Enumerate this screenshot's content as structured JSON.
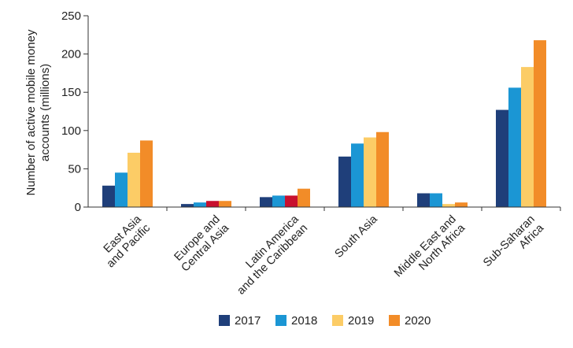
{
  "chart_data": {
    "type": "bar",
    "title": "",
    "xlabel": "",
    "ylabel_lines": [
      "Number of active mobile money",
      "accounts (millions)"
    ],
    "ylim": [
      0,
      250
    ],
    "yticks": [
      "0",
      "50",
      "100",
      "150",
      "200",
      "250"
    ],
    "grid": false,
    "legend_position": "bottom",
    "categories": [
      [
        "East Asia",
        "and Pacific"
      ],
      [
        "Europe and",
        "Central Asia"
      ],
      [
        "Latin America",
        "and the Caribbean"
      ],
      [
        "South Asia"
      ],
      [
        "Middle East and",
        "North Africa"
      ],
      [
        "Sub-Saharan",
        "Africa"
      ]
    ],
    "series": [
      {
        "name": "2017",
        "color": "#1f3f7a",
        "values": [
          28,
          4,
          13,
          66,
          18,
          127
        ]
      },
      {
        "name": "2018",
        "color": "#1b96d4",
        "values": [
          45,
          6,
          15,
          83,
          18,
          156
        ]
      },
      {
        "name": "2019",
        "color": "#fccc66",
        "values": [
          71,
          8,
          15,
          91,
          4,
          183
        ]
      },
      {
        "name": "2020",
        "color": "#f28c28",
        "values": [
          87,
          8,
          24,
          98,
          6,
          218
        ]
      }
    ],
    "overrides": [
      {
        "series": 2,
        "category": 1,
        "color": "#c8102e"
      },
      {
        "series": 2,
        "category": 2,
        "color": "#c8102e"
      }
    ]
  }
}
